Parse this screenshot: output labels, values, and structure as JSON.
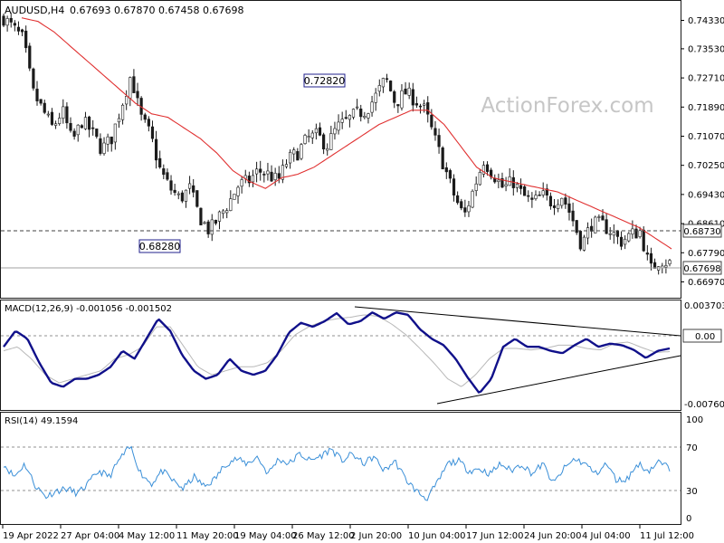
{
  "header": {
    "symbol": "AUDUSD,H4",
    "ohlc": "0.67693 0.67870 0.67458 0.67698"
  },
  "watermark": "ActionForex.com",
  "colors": {
    "candle": "#1a1a1a",
    "ma": "#e03030",
    "macd": "#10108a",
    "signal": "#b8b8b8",
    "rsi": "#3a8fd8",
    "label_border": "#20208c",
    "grid": "#909090"
  },
  "chart_data": [
    {
      "type": "candlestick",
      "panel": "price",
      "ylim": [
        0.666,
        0.7475
      ],
      "y_ticks": [
        "0.74330",
        "0.73530",
        "0.72710",
        "0.71890",
        "0.71070",
        "0.70250",
        "0.69430",
        "0.68610",
        "0.67790",
        "0.66970"
      ],
      "x_ticks": [
        "19 Apr 2022",
        "27 Apr 04:00",
        "4 May 12:00",
        "11 May 20:00",
        "19 May 04:00",
        "26 May 12:00",
        "2 Jun 20:00",
        "10 Jun 04:00",
        "17 Jun 12:00",
        "24 Jun 20:00",
        "4 Jul 04:00",
        "11 Jul 12:00"
      ],
      "close_path": [
        0.744,
        0.741,
        0.738,
        0.723,
        0.718,
        0.713,
        0.718,
        0.709,
        0.715,
        0.712,
        0.707,
        0.71,
        0.719,
        0.728,
        0.716,
        0.711,
        0.701,
        0.696,
        0.693,
        0.696,
        0.688,
        0.684,
        0.688,
        0.692,
        0.697,
        0.698,
        0.701,
        0.7,
        0.698,
        0.704,
        0.706,
        0.71,
        0.711,
        0.708,
        0.713,
        0.715,
        0.717,
        0.718,
        0.722,
        0.727,
        0.72,
        0.723,
        0.721,
        0.718,
        0.71,
        0.702,
        0.694,
        0.688,
        0.696,
        0.704,
        0.7,
        0.696,
        0.698,
        0.694,
        0.692,
        0.694,
        0.692,
        0.694,
        0.688,
        0.68,
        0.686,
        0.686,
        0.684,
        0.681,
        0.683,
        0.684,
        0.673,
        0.676,
        0.675
      ],
      "ma_path": [
        0.744,
        0.743,
        0.74,
        0.736,
        0.732,
        0.728,
        0.724,
        0.72,
        0.717,
        0.716,
        0.713,
        0.71,
        0.706,
        0.701,
        0.698,
        0.696,
        0.699,
        0.7,
        0.702,
        0.705,
        0.708,
        0.711,
        0.714,
        0.716,
        0.718,
        0.718,
        0.714,
        0.708,
        0.702,
        0.699,
        0.698,
        0.697,
        0.696,
        0.695,
        0.693,
        0.691,
        0.689,
        0.687,
        0.685,
        0.682,
        0.679
      ],
      "level_lines": [
        {
          "value": 0.6873,
          "label": "0.68730",
          "style": "dashed"
        },
        {
          "value": 0.67698,
          "label": "0.67698",
          "style": "solid"
        }
      ],
      "annotations": [
        {
          "label": "0.72820",
          "value": 0.7282
        },
        {
          "label": "0.68280",
          "value": 0.6828
        }
      ]
    },
    {
      "type": "line",
      "panel": "macd",
      "title": "MACD(12,26,9) -0.001056 -0.001502",
      "ylim": [
        -0.0081,
        0.004
      ],
      "y_ticks": [
        "0.003703",
        "0.00",
        "-0.007608"
      ],
      "zero_label": "0.00",
      "macd_path": [
        -0.001,
        0.001,
        0.0,
        -0.003,
        -0.0055,
        -0.006,
        -0.005,
        -0.005,
        -0.0045,
        -0.0035,
        -0.0015,
        -0.0025,
        0.0,
        0.0025,
        0.001,
        -0.002,
        -0.004,
        -0.005,
        -0.0045,
        -0.0025,
        -0.004,
        -0.0045,
        -0.004,
        -0.002,
        0.0008,
        0.002,
        0.0015,
        0.0022,
        0.0032,
        0.0018,
        0.0022,
        0.0033,
        0.0025,
        0.0033,
        0.003,
        0.0012,
        0.0,
        -0.0008,
        -0.0025,
        -0.0048,
        -0.0068,
        -0.005,
        -0.001,
        0.0,
        -0.001,
        -0.001,
        -0.0015,
        -0.0018,
        -0.0008,
        0.0,
        -0.001,
        -0.0006,
        -0.0008,
        -0.0014,
        -0.0024,
        -0.0015,
        -0.0012
      ],
      "signal_path": [
        -0.0015,
        -0.001,
        -0.0025,
        -0.0045,
        -0.0055,
        -0.005,
        -0.0045,
        -0.004,
        -0.0025,
        -0.002,
        -0.001,
        0.0015,
        0.0015,
        -0.001,
        -0.0035,
        -0.0045,
        -0.004,
        -0.0035,
        -0.0035,
        -0.003,
        -0.0015,
        0.0005,
        0.0015,
        0.0022,
        0.0025,
        0.0027,
        0.003,
        0.0028,
        0.0018,
        0.0005,
        -0.0012,
        -0.003,
        -0.005,
        -0.006,
        -0.0045,
        -0.0025,
        -0.0012,
        -0.0012,
        -0.0014,
        -0.0012,
        -0.0008,
        -0.0008,
        -0.0012,
        -0.0014,
        -0.0006,
        -0.0004,
        -0.0011,
        -0.0017,
        -0.0016
      ],
      "trendlines": [
        {
          "from": 0.0033,
          "to": -0.0001
        },
        {
          "from": -0.0068,
          "to": -0.0019
        }
      ]
    },
    {
      "type": "line",
      "panel": "rsi",
      "title": "RSI(14) 49.1594",
      "ylim": [
        0,
        100
      ],
      "y_ticks": [
        "100",
        "70",
        "30",
        "0"
      ],
      "levels": [
        70,
        30
      ],
      "rsi_path": [
        55,
        42,
        55,
        33,
        22,
        28,
        30,
        25,
        35,
        48,
        42,
        60,
        72,
        45,
        35,
        48,
        38,
        30,
        42,
        32,
        40,
        55,
        60,
        55,
        62,
        45,
        60,
        55,
        65,
        58,
        63,
        70,
        58,
        65,
        55,
        62,
        48,
        58,
        40,
        28,
        20,
        35,
        55,
        58,
        48,
        50,
        45,
        55,
        48,
        55,
        45,
        55,
        35,
        50,
        60,
        55,
        45,
        55,
        38,
        40,
        55,
        48,
        57,
        50
      ]
    }
  ]
}
